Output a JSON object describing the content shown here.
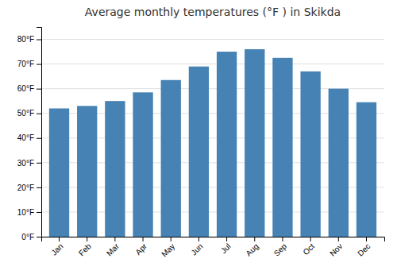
{
  "chart_data": {
    "type": "bar",
    "title": "Average monthly temperatures (°F ) in Skikda",
    "categories": [
      "Jan",
      "Feb",
      "Mar",
      "Apr",
      "May",
      "Jun",
      "Jul",
      "Aug",
      "Sep",
      "Oct",
      "Nov",
      "Dec"
    ],
    "values": [
      52,
      53,
      55,
      58.5,
      63.5,
      69,
      75,
      76,
      72.5,
      67,
      60,
      54.5
    ],
    "ylim": [
      0,
      85
    ],
    "yticks": [
      {
        "value": 0,
        "label": "0°F"
      },
      {
        "value": 10,
        "label": "10°F"
      },
      {
        "value": 20,
        "label": "20°F"
      },
      {
        "value": 30,
        "label": "30°F"
      },
      {
        "value": 40,
        "label": "40°F"
      },
      {
        "value": 50,
        "label": "50°F"
      },
      {
        "value": 60,
        "label": "60°F"
      },
      {
        "value": 70,
        "label": "70°F"
      },
      {
        "value": 80,
        "label": "80°F"
      }
    ],
    "grid": true
  }
}
